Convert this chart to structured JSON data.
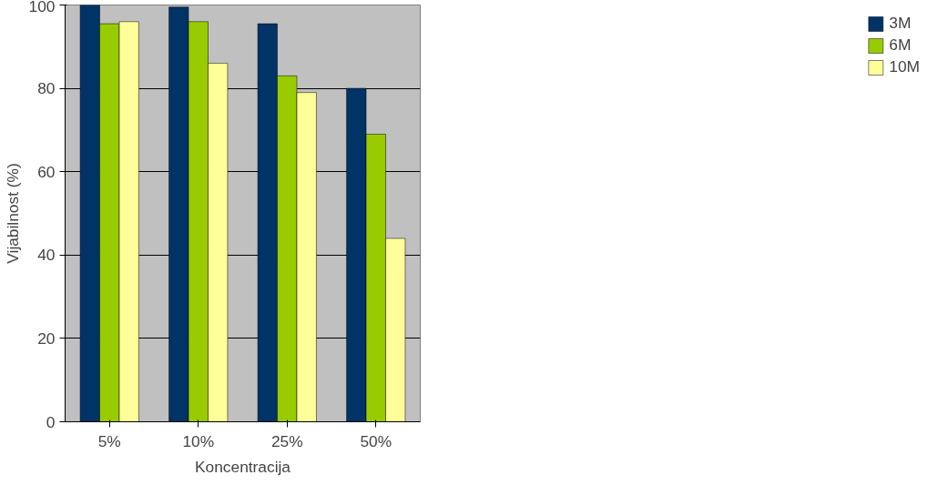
{
  "chart_data": {
    "type": "bar",
    "xlabel": "Koncentracija",
    "ylabel": "Vijabilnost (%)",
    "categories": [
      "5%",
      "10%",
      "25%",
      "50%"
    ],
    "series": [
      {
        "name": "3M",
        "color": "#003366",
        "values": [
          100,
          99.5,
          95.5,
          80
        ]
      },
      {
        "name": "6M",
        "color": "#99cc00",
        "values": [
          95.5,
          96,
          83,
          69
        ]
      },
      {
        "name": "10M",
        "color": "#ffff99",
        "values": [
          96,
          86,
          79,
          44
        ]
      }
    ],
    "ylim": [
      0,
      100
    ],
    "yticks": [
      0,
      20,
      40,
      60,
      80,
      100
    ],
    "grid": "y",
    "legend": "right"
  }
}
